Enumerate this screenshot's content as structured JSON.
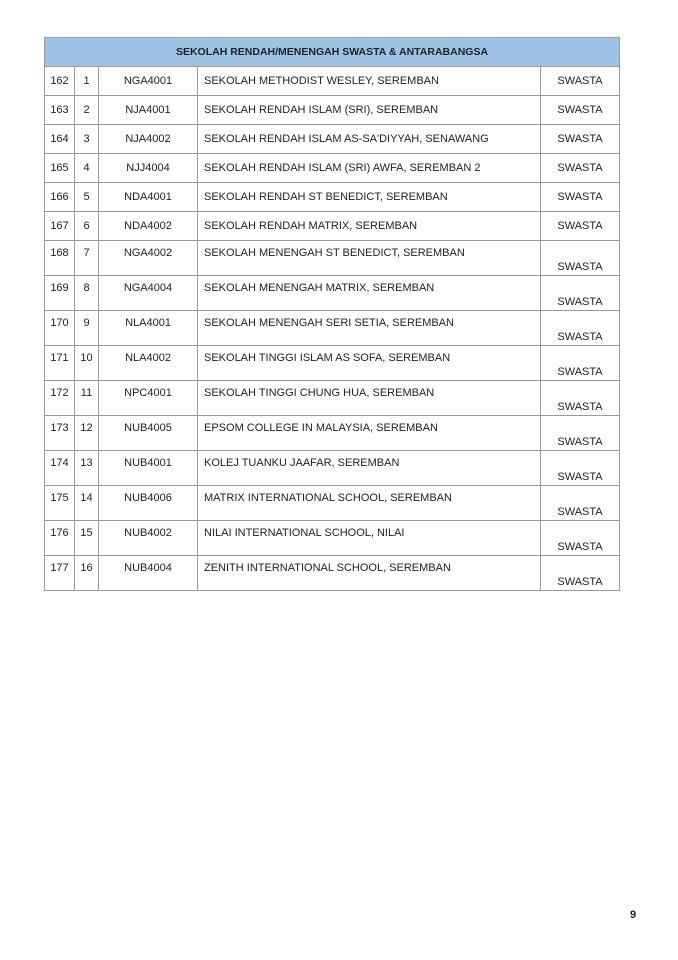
{
  "table": {
    "title": "SEKOLAH RENDAH/MENENGAH SWASTA & ANTARABANGSA",
    "rows": [
      {
        "no": "162",
        "idx": "1",
        "code": "NGA4001",
        "name": "SEKOLAH METHODIST WESLEY, SEREMBAN",
        "type": "SWASTA"
      },
      {
        "no": "163",
        "idx": "2",
        "code": "NJA4001",
        "name": "SEKOLAH RENDAH ISLAM (SRI), SEREMBAN",
        "type": "SWASTA"
      },
      {
        "no": "164",
        "idx": "3",
        "code": "NJA4002",
        "name": "SEKOLAH RENDAH ISLAM AS-SA'DIYYAH, SENAWANG",
        "type": "SWASTA"
      },
      {
        "no": "165",
        "idx": "4",
        "code": "NJJ4004",
        "name": "SEKOLAH RENDAH ISLAM (SRI) AWFA, SEREMBAN 2",
        "type": "SWASTA"
      },
      {
        "no": "166",
        "idx": "5",
        "code": "NDA4001",
        "name": "SEKOLAH RENDAH ST BENEDICT, SEREMBAN",
        "type": "SWASTA"
      },
      {
        "no": "167",
        "idx": "6",
        "code": "NDA4002",
        "name": "SEKOLAH RENDAH MATRIX, SEREMBAN",
        "type": "SWASTA"
      },
      {
        "no": "168",
        "idx": "7",
        "code": "NGA4002",
        "name": "SEKOLAH MENENGAH ST BENEDICT, SEREMBAN",
        "type": "SWASTA"
      },
      {
        "no": "169",
        "idx": "8",
        "code": "NGA4004",
        "name": "SEKOLAH MENENGAH MATRIX, SEREMBAN",
        "type": "SWASTA"
      },
      {
        "no": "170",
        "idx": "9",
        "code": "NLA4001",
        "name": "SEKOLAH MENENGAH SERI SETIA, SEREMBAN",
        "type": "SWASTA"
      },
      {
        "no": "171",
        "idx": "10",
        "code": "NLA4002",
        "name": "SEKOLAH TINGGI ISLAM AS SOFA, SEREMBAN",
        "type": "SWASTA"
      },
      {
        "no": "172",
        "idx": "11",
        "code": "NPC4001",
        "name": "SEKOLAH TINGGI CHUNG HUA, SEREMBAN",
        "type": "SWASTA"
      },
      {
        "no": "173",
        "idx": "12",
        "code": "NUB4005",
        "name": "EPSOM COLLEGE IN MALAYSIA, SEREMBAN",
        "type": "SWASTA"
      },
      {
        "no": "174",
        "idx": "13",
        "code": "NUB4001",
        "name": "KOLEJ TUANKU JAAFAR, SEREMBAN",
        "type": "SWASTA"
      },
      {
        "no": "175",
        "idx": "14",
        "code": "NUB4006",
        "name": "MATRIX INTERNATIONAL SCHOOL, SEREMBAN",
        "type": "SWASTA"
      },
      {
        "no": "176",
        "idx": "15",
        "code": "NUB4002",
        "name": "NILAI INTERNATIONAL SCHOOL, NILAI",
        "type": "SWASTA"
      },
      {
        "no": "177",
        "idx": "16",
        "code": "NUB4004",
        "name": "ZENITH INTERNATIONAL SCHOOL, SEREMBAN",
        "type": "SWASTA"
      }
    ]
  },
  "page_number": "9"
}
